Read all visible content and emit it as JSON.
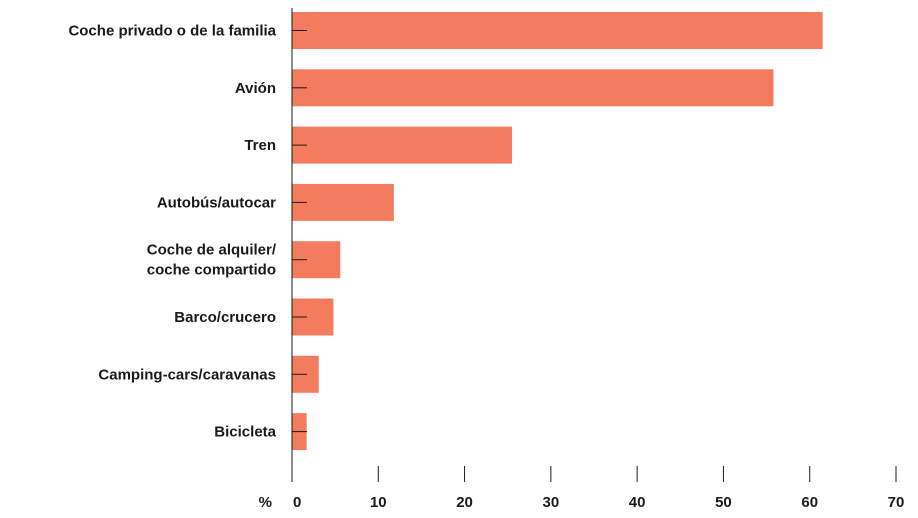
{
  "chart_data": {
    "type": "bar",
    "orientation": "horizontal",
    "categories": [
      [
        "Coche privado o de la familia"
      ],
      [
        "Avión"
      ],
      [
        "Tren"
      ],
      [
        "Autobús/autocar"
      ],
      [
        "Coche de alquiler/",
        "coche compartido"
      ],
      [
        "Barco/crucero"
      ],
      [
        "Camping-cars/caravanas"
      ],
      [
        "Bicicleta"
      ]
    ],
    "values": [
      61.5,
      55.8,
      25.5,
      11.8,
      5.6,
      4.8,
      3.1,
      1.7
    ],
    "x_ticks": [
      0,
      10,
      20,
      30,
      40,
      50,
      60,
      70
    ],
    "xlim": [
      0,
      70
    ],
    "x_unit_label": "%",
    "bar_color": "#f47c5e",
    "grid": false
  }
}
